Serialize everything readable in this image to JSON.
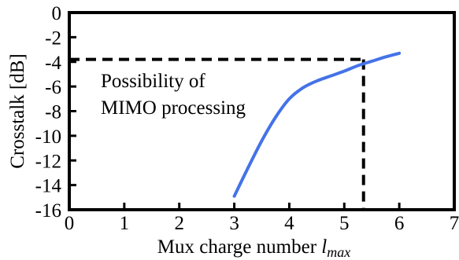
{
  "chart_data": {
    "type": "line",
    "title": "",
    "xlabel": "Mux charge number ",
    "xlabel_var": "l",
    "xlabel_sub": "max",
    "ylabel": "Crosstalk [dB]",
    "xlim": [
      0,
      7
    ],
    "ylim": [
      -16,
      0
    ],
    "x_ticks": [
      0,
      1,
      2,
      3,
      4,
      5,
      6,
      7
    ],
    "y_ticks": [
      0,
      -2,
      -4,
      -6,
      -8,
      -10,
      -12,
      -14,
      -16
    ],
    "grid": false,
    "series": [
      {
        "color": "#4472e8",
        "x": [
          3.0,
          3.25,
          3.5,
          3.75,
          4.0,
          4.25,
          4.5,
          4.75,
          5.0,
          5.25,
          5.5,
          5.75,
          6.0
        ],
        "y": [
          -14.9,
          -12.6,
          -10.4,
          -8.5,
          -7.0,
          -6.1,
          -5.55,
          -5.15,
          -4.75,
          -4.3,
          -3.95,
          -3.6,
          -3.3
        ]
      }
    ],
    "threshold": {
      "x": 5.35,
      "y": -3.8,
      "style": "dashed"
    },
    "annotation": {
      "lines": [
        "Possibility of",
        "MIMO processing"
      ]
    }
  }
}
